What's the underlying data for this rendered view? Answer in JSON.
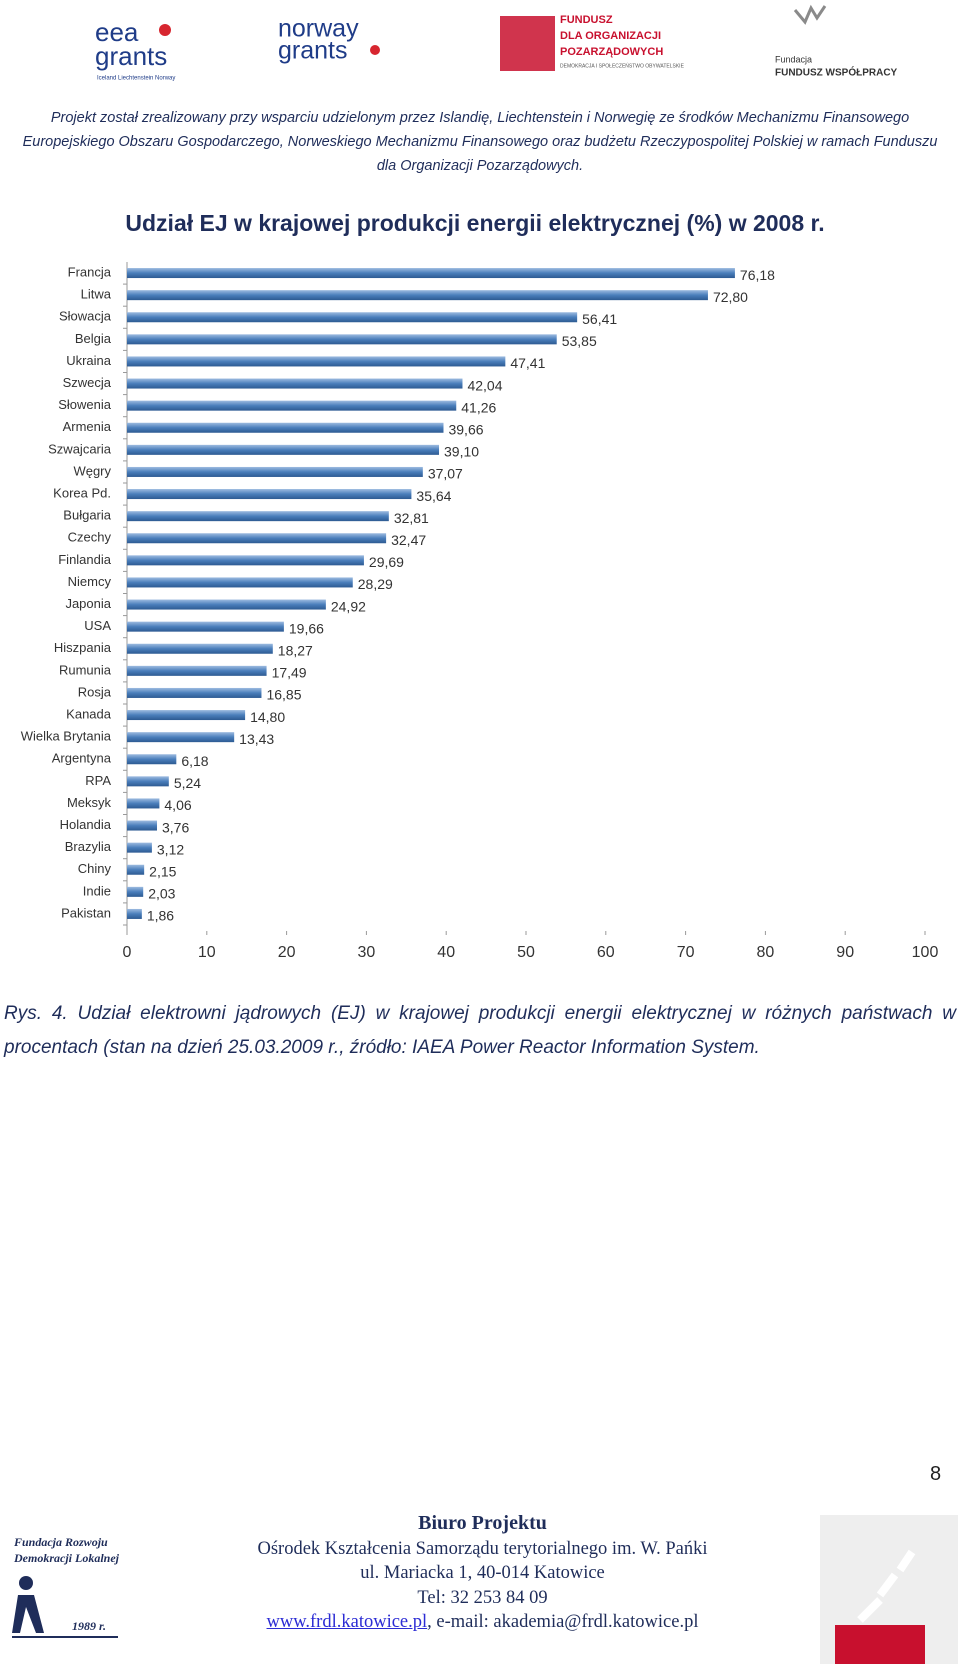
{
  "header": {
    "eea_logo": {
      "top": "eea",
      "bottom": "grants",
      "small": "Iceland Liechtenstein Norway"
    },
    "norway_logo": {
      "top": "norway",
      "bottom": "grants"
    },
    "fundusz_logo": {
      "line1": "FUNDUSZ",
      "line2": "DLA ORGANIZACJI",
      "line3": "POZARZĄDOWYCH",
      "small": "DEMOKRACJA I SPOŁECZEŃSTWO OBYWATELSKIE"
    },
    "fundacja_logo": {
      "line1": "Fundacja",
      "line2": "FUNDUSZ WSPÓŁPRACY"
    },
    "funding_lines": [
      "Projekt został zrealizowany przy wsparciu udzielonym przez Islandię, Liechtenstein i Norwegię ze środków Mechanizmu Finansowego",
      "Europejskiego Obszaru Gospodarczego, Norweskiego Mechanizmu Finansowego oraz budżetu Rzeczypospolitej Polskiej w ramach Funduszu",
      "dla Organizacji Pozarządowych."
    ]
  },
  "chart_data": {
    "type": "hbar",
    "title": "Udział EJ w krajowej produkcji energii elektrycznej (%) w 2008 r.",
    "categories": [
      "Francja",
      "Litwa",
      "Słowacja",
      "Belgia",
      "Ukraina",
      "Szwecja",
      "Słowenia",
      "Armenia",
      "Szwajcaria",
      "Węgry",
      "Korea Pd.",
      "Bułgaria",
      "Czechy",
      "Finlandia",
      "Niemcy",
      "Japonia",
      "USA",
      "Hiszpania",
      "Rumunia",
      "Rosja",
      "Kanada",
      "Wielka Brytania",
      "Argentyna",
      "RPA",
      "Meksyk",
      "Holandia",
      "Brazylia",
      "Chiny",
      "Indie",
      "Pakistan"
    ],
    "values": [
      76.18,
      72.8,
      56.41,
      53.85,
      47.41,
      42.04,
      41.26,
      39.66,
      39.1,
      37.07,
      35.64,
      32.81,
      32.47,
      29.69,
      28.29,
      24.92,
      19.66,
      18.27,
      17.49,
      16.85,
      14.8,
      13.43,
      6.18,
      5.24,
      4.06,
      3.76,
      3.12,
      2.15,
      2.03,
      1.86
    ],
    "value_labels": [
      "76,18",
      "72,80",
      "56,41",
      "53,85",
      "47,41",
      "42,04",
      "41,26",
      "39,66",
      "39,10",
      "37,07",
      "35,64",
      "32,81",
      "32,47",
      "29,69",
      "28,29",
      "24,92",
      "19,66",
      "18,27",
      "17,49",
      "16,85",
      "14,80",
      "13,43",
      "6,18",
      "5,24",
      "4,06",
      "3,76",
      "3,12",
      "2,15",
      "2,03",
      "1,86"
    ],
    "color": "#4a7ebb",
    "xlim": [
      0,
      100
    ],
    "xticks": [
      0,
      10,
      20,
      30,
      40,
      50,
      60,
      70,
      80,
      90,
      100
    ],
    "grid": false
  },
  "caption": "Rys. 4. Udział elektrowni jądrowych (EJ) w krajowej produkcji energii elektrycznej w różnych państwach w procentach (stan na dzień 25.03.2009 r., źródło: IAEA Power Reactor Information System.",
  "page_number": "8",
  "footer": {
    "title": "Biuro Projektu",
    "lines": [
      "Ośrodek Kształcenia Samorządu terytorialnego im. W. Pańki",
      "ul. Mariacka 1, 40-014 Katowice",
      "Tel: 32 253 84 09"
    ],
    "link": "www.frdl.katowice.pl",
    "email": ", e-mail: akademia@frdl.katowice.pl",
    "logo": {
      "line1": "Fundacja Rozwoju",
      "line2": "Demokracji Lokalnej",
      "year": "1989 r."
    }
  }
}
